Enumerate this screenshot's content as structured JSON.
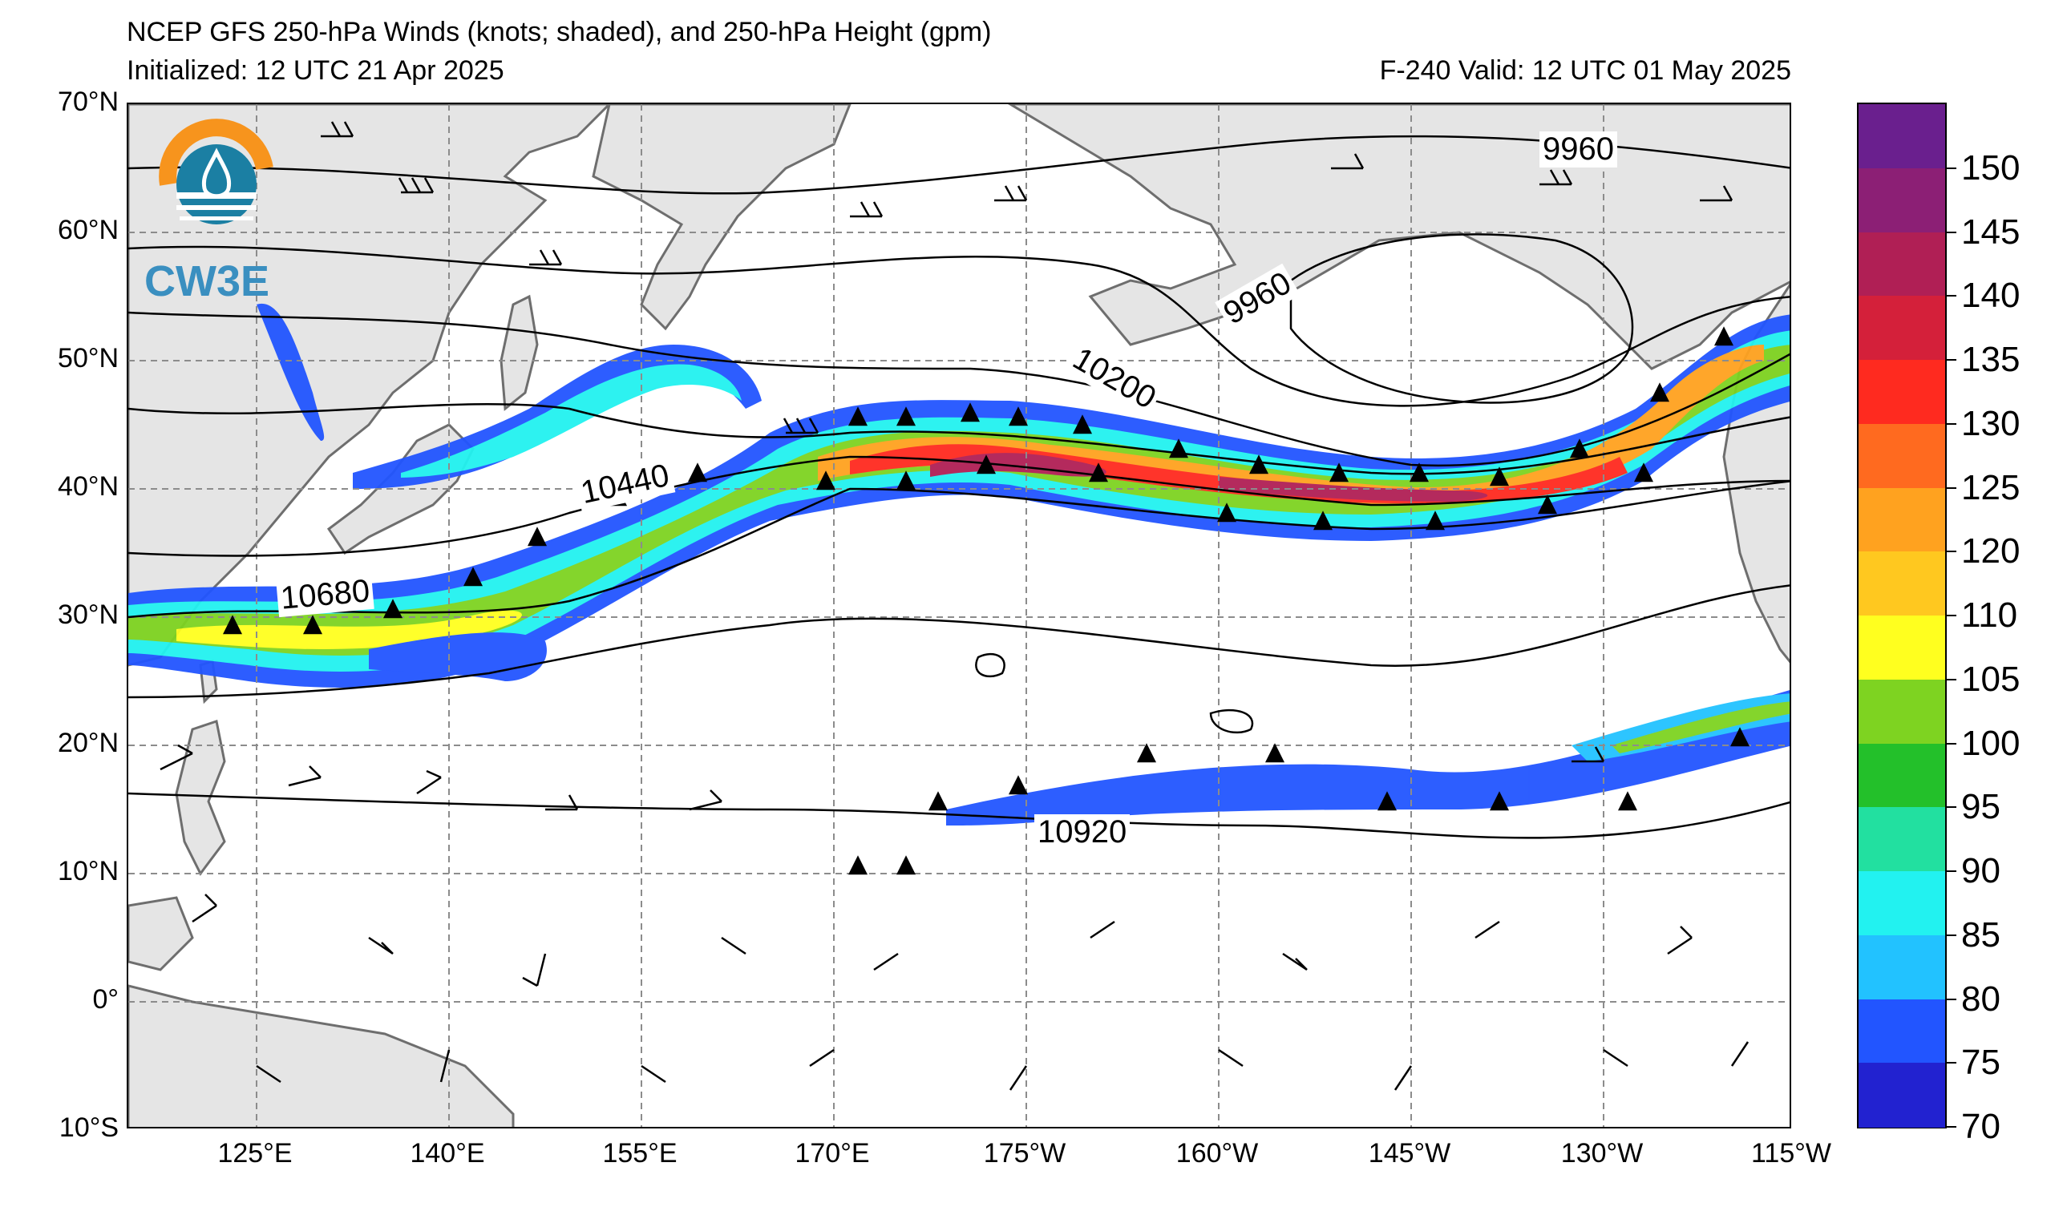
{
  "header": {
    "title": "NCEP GFS 250-hPa Winds (knots; shaded), and 250-hPa Height (gpm)",
    "initialized": "Initialized: 12 UTC 21 Apr 2025",
    "valid": "F-240  Valid: 12 UTC 01 May 2025"
  },
  "logo": {
    "text": "CW3E",
    "icon": "cw3e-logo-icon"
  },
  "map": {
    "lat_labels": [
      "70°N",
      "60°N",
      "50°N",
      "40°N",
      "30°N",
      "20°N",
      "10°N",
      "0°",
      "10°S"
    ],
    "lon_labels": [
      "125°E",
      "140°E",
      "155°E",
      "170°E",
      "175°W",
      "160°W",
      "145°W",
      "130°W",
      "115°W"
    ],
    "lat_range": [
      -10,
      70
    ],
    "lon_range": [
      115,
      245
    ],
    "gridlines": "dashed",
    "land_color": "#e5e5e5",
    "coast_color": "#6e6e6e",
    "contour_labels": [
      "9960",
      "9960",
      "10200",
      "10440",
      "10680",
      "10920"
    ]
  },
  "colorbar": {
    "labels": [
      "150",
      "145",
      "140",
      "135",
      "130",
      "125",
      "120",
      "110",
      "105",
      "100",
      "95",
      "90",
      "85",
      "80",
      "75",
      "70"
    ],
    "colors": [
      "#6a1f8e",
      "#8c1f75",
      "#b01f55",
      "#d4203a",
      "#ff2a1f",
      "#ff6a1f",
      "#ffa21f",
      "#ffc81f",
      "#ffff1f",
      "#7ed321",
      "#23c02a",
      "#22e0a0",
      "#22f2f0",
      "#22c2ff",
      "#2255ff",
      "#2222d0"
    ]
  }
}
